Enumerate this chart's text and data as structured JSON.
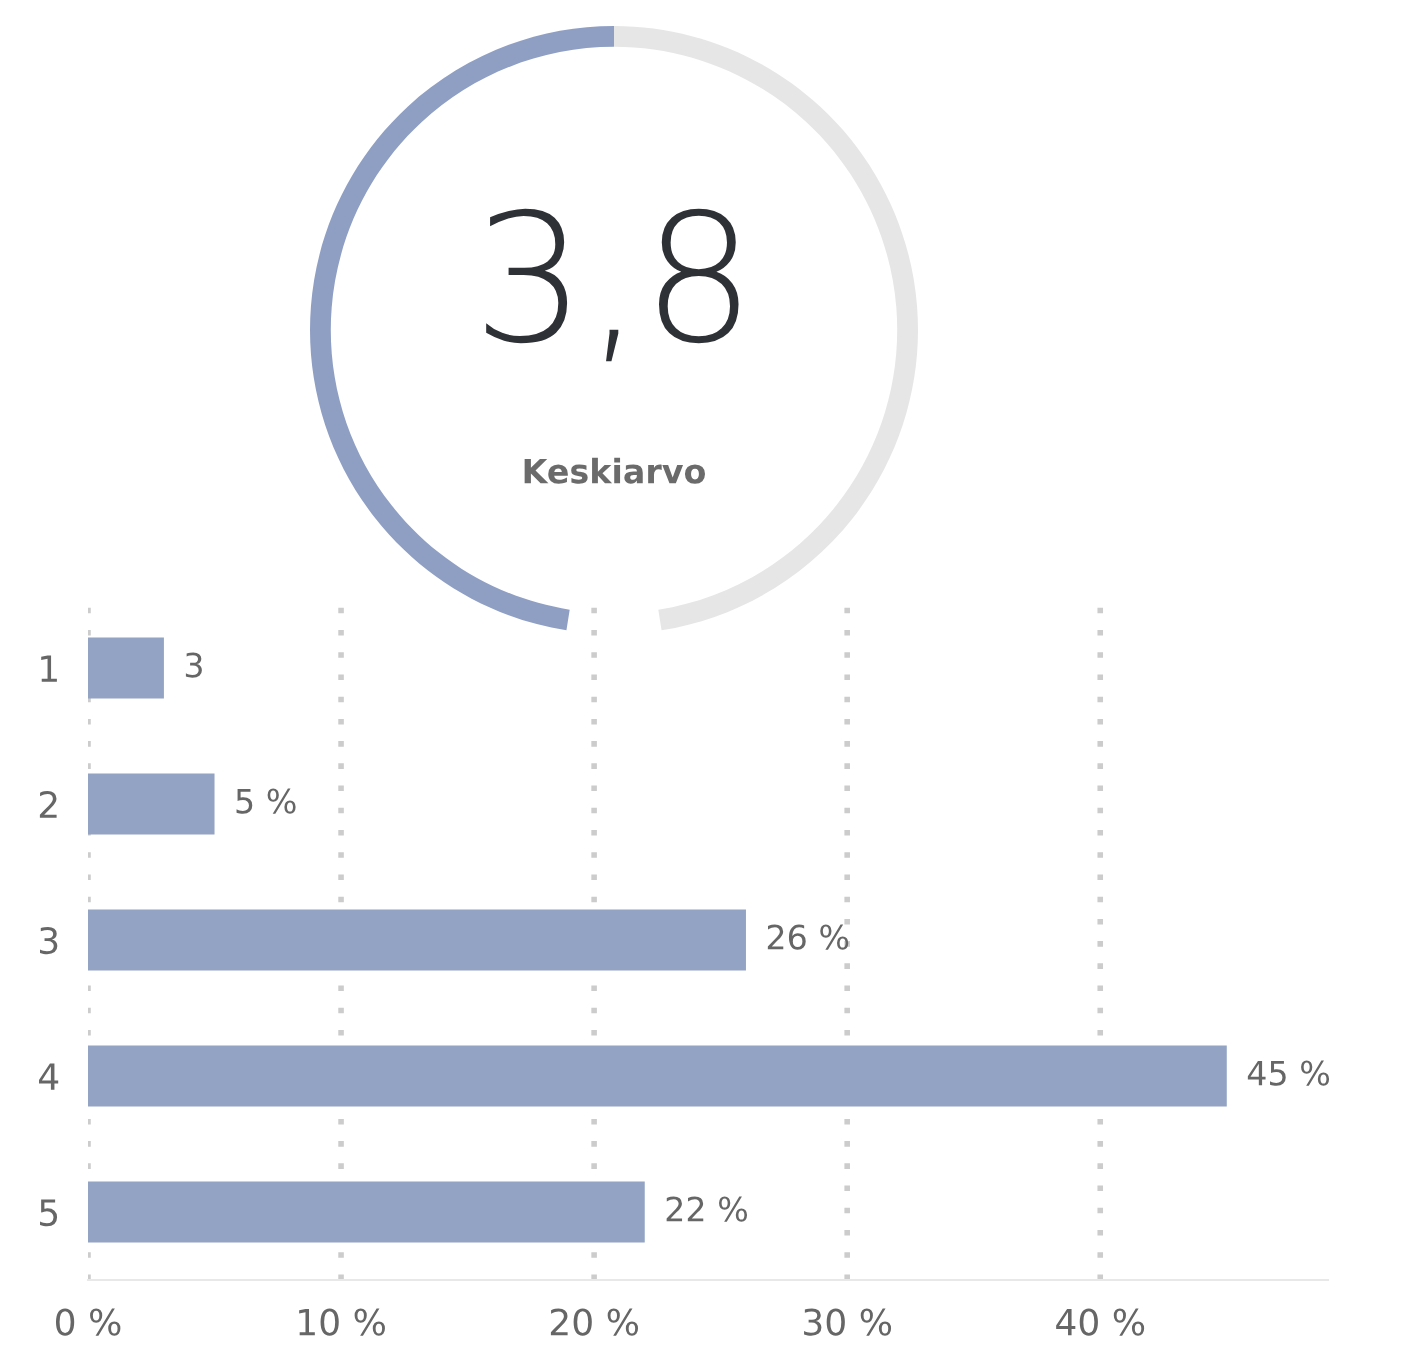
{
  "chart_data": [
    {
      "type": "donut",
      "categories": [
        null,
        null
      ],
      "values": [
        50,
        50
      ],
      "colors": [
        "#8f9fc4",
        "#e6e6e6"
      ],
      "title": "3,8",
      "subtitle": "Keskiarvo"
    },
    {
      "type": "bar",
      "orientation": "horizontal",
      "categories": [
        "1",
        "2",
        "3",
        "4",
        "5"
      ],
      "values": [
        3,
        5,
        26,
        45,
        22
      ],
      "value_labels": [
        "3",
        "5 %",
        "26 %",
        "45 %",
        "22 %"
      ],
      "color": "#93a3c4",
      "xlim": [
        0,
        49
      ],
      "xticks": [
        {
          "value": 0,
          "label": "0 %"
        },
        {
          "value": 10,
          "label": "10 %"
        },
        {
          "value": 20,
          "label": "20 %"
        },
        {
          "value": 30,
          "label": "30 %"
        },
        {
          "value": 40,
          "label": "40 %"
        }
      ],
      "grid": "x"
    }
  ]
}
